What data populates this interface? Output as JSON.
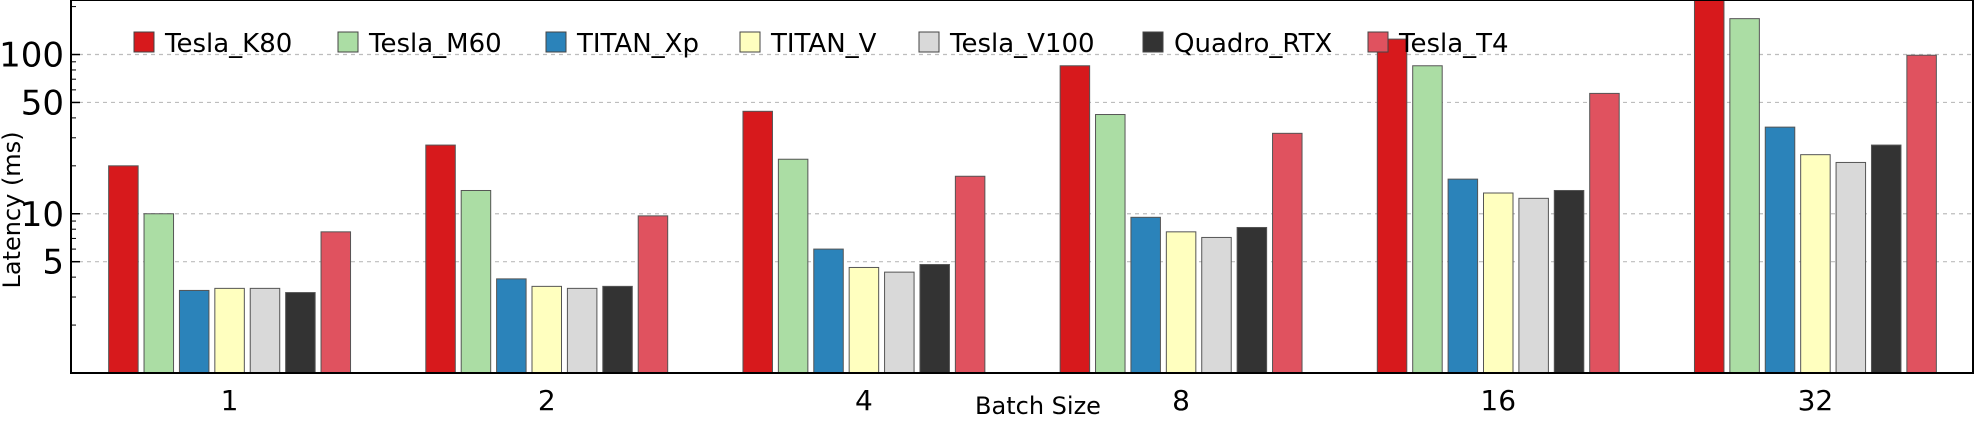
{
  "chart_data": {
    "type": "bar",
    "xlabel": "Batch Size",
    "ylabel": "Latency (ms)",
    "y_scale": "log",
    "ylim": [
      1,
      220
    ],
    "grid": "horizontal dashed at 5, 10, 50, 100",
    "legend_position": "top-left",
    "yticks": [
      5,
      10,
      50,
      100
    ],
    "ytick_labels": [
      "5",
      "10",
      "50",
      "100"
    ],
    "categories": [
      "1",
      "2",
      "4",
      "8",
      "16",
      "32"
    ],
    "series": [
      {
        "name": "Tesla_K80",
        "color": "#d7191c",
        "values": [
          20,
          27,
          44,
          85,
          125,
          220
        ]
      },
      {
        "name": "Tesla_M60",
        "color": "#abdda4",
        "values": [
          10,
          14,
          22,
          42,
          85,
          168
        ]
      },
      {
        "name": "TITAN_Xp",
        "color": "#2b83ba",
        "values": [
          3.3,
          3.9,
          6.0,
          9.5,
          16.5,
          35
        ]
      },
      {
        "name": "TITAN_V",
        "color": "#ffffbf",
        "values": [
          3.4,
          3.5,
          4.6,
          7.7,
          13.5,
          23.5
        ]
      },
      {
        "name": "Tesla_V100",
        "color": "#d9d9d9",
        "values": [
          3.4,
          3.4,
          4.3,
          7.1,
          12.5,
          21
        ]
      },
      {
        "name": "Quadro_RTX",
        "color": "#333333",
        "values": [
          3.2,
          3.5,
          4.8,
          8.2,
          14,
          27
        ]
      },
      {
        "name": "Tesla_T4",
        "color": "#e0525f",
        "values": [
          7.7,
          9.7,
          17.2,
          32,
          57,
          99
        ]
      }
    ]
  }
}
